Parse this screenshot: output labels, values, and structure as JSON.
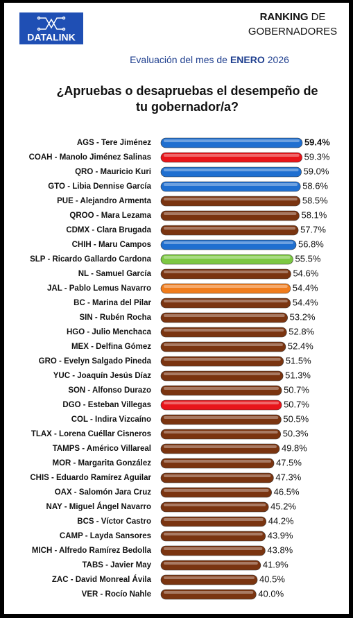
{
  "header": {
    "logo": "DATALINK",
    "ranking": "RANKING",
    "de": "DE",
    "gobernadores": "GOBERNADORES",
    "subtitle_pre": "Evaluación del mes de",
    "subtitle_month": "ENERO",
    "subtitle_year": "2026"
  },
  "chart_data": {
    "type": "bar",
    "orientation": "horizontal",
    "title": [
      "¿Apruebas o desapruebas el desempeño de",
      "tu gobernador/a?"
    ],
    "categories": [
      "AGS - Tere Jiménez",
      "COAH - Manolo Jiménez Salinas",
      "QRO - Mauricio Kuri",
      "GTO - Libia Dennise García",
      "PUE - Alejandro Armenta",
      "QROO - Mara Lezama",
      "CDMX - Clara Brugada",
      "CHIH - Maru Campos",
      "SLP - Ricardo Gallardo Cardona",
      "NL - Samuel García",
      "JAL - Pablo Lemus Navarro",
      "BC - Marina del Pilar",
      "SIN - Rubén Rocha",
      "HGO - Julio Menchaca",
      "MEX - Delfina Gómez",
      "GRO - Evelyn Salgado Pineda",
      "YUC - Joaquín Jesús Díaz",
      "SON - Alfonso Durazo",
      "DGO - Esteban Villegas",
      "COL - Indira Vizcaíno",
      "TLAX - Lorena Cuéllar Cisneros",
      "TAMPS - Américo Villareal",
      "MOR - Margarita González",
      "CHIS - Eduardo Ramírez Aguilar",
      "OAX - Salomón Jara Cruz",
      "NAY - Miguel Ángel Navarro",
      "BCS - Víctor Castro",
      "CAMP - Layda Sansores",
      "MICH - Alfredo Ramírez Bedolla",
      "TABS - Javier May",
      "ZAC - David Monreal Ávila",
      "VER - Rocío Nahle"
    ],
    "values": [
      59.4,
      59.3,
      59.0,
      58.6,
      58.5,
      58.1,
      57.7,
      56.8,
      55.5,
      54.6,
      54.4,
      54.4,
      53.2,
      52.8,
      52.4,
      51.5,
      51.3,
      50.7,
      50.7,
      50.5,
      50.3,
      49.8,
      47.5,
      47.3,
      46.5,
      45.2,
      44.2,
      43.9,
      43.8,
      41.9,
      40.5,
      40.0
    ],
    "value_labels": [
      "59.4%",
      "59.3%",
      "59.0%",
      "58.6%",
      "58.5%",
      "58.1%",
      "57.7%",
      "56.8%",
      "55.5%",
      "54.6%",
      "54.4%",
      "54.4%",
      "53.2%",
      "52.8%",
      "52.4%",
      "51.5%",
      "51.3%",
      "50.7%",
      "50.7%",
      "50.5%",
      "50.3%",
      "49.8%",
      "47.5%",
      "47.3%",
      "46.5%",
      "45.2%",
      "44.2%",
      "43.9%",
      "43.8%",
      "41.9%",
      "40.5%",
      "40.0%"
    ],
    "colors": [
      "#1f6fd0",
      "#e8141a",
      "#1f6fd0",
      "#1f6fd0",
      "#7a3410",
      "#7a3410",
      "#7a3410",
      "#1f6fd0",
      "#7cc843",
      "#7a3410",
      "#f07c1c",
      "#7a3410",
      "#7a3410",
      "#7a3410",
      "#7a3410",
      "#7a3410",
      "#7a3410",
      "#7a3410",
      "#e8141a",
      "#7a3410",
      "#7a3410",
      "#7a3410",
      "#7a3410",
      "#7a3410",
      "#7a3410",
      "#7a3410",
      "#7a3410",
      "#7a3410",
      "#7a3410",
      "#7a3410",
      "#7a3410",
      "#7a3410"
    ],
    "xlim": [
      0,
      60
    ]
  }
}
